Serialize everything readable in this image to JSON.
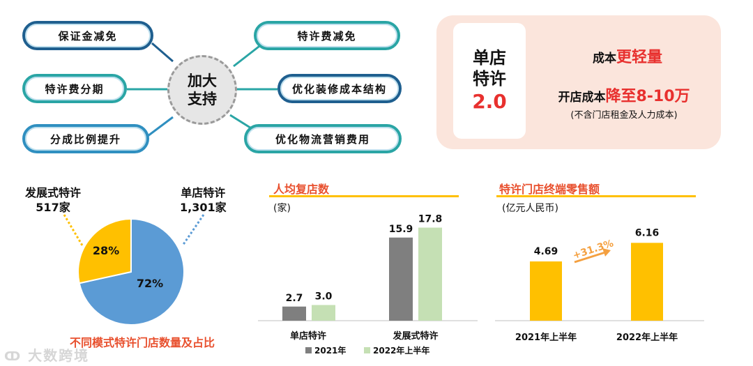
{
  "support": {
    "hub": [
      "加大",
      "支持"
    ],
    "left": [
      "保证金减免",
      "特许费分期",
      "分成比例提升"
    ],
    "right": [
      "特许费减免",
      "优化装修成本结构",
      "优化物流营销费用"
    ]
  },
  "model": {
    "card": [
      "单店",
      "特许",
      "2.0"
    ],
    "line1_prefix": "成本",
    "line1_highlight": "更轻量",
    "line2_prefix": "开店成本",
    "line2_highlight": "降至8-10万",
    "note": "(不含门店租金及人力成本)"
  },
  "colors": {
    "accent": "#e8302e",
    "gray": "#7f7f7f",
    "green": "#c5e0b4",
    "yellow": "#ffc000",
    "blue": "#5b9bd5"
  },
  "chart_data": [
    {
      "type": "pie",
      "title": "不同模式特许门店数量及占比",
      "slices": [
        {
          "label": "单店特许",
          "count_label": "1,301家",
          "value": 1301,
          "percent_label": "72%"
        },
        {
          "label": "发展式特许",
          "count_label": "517家",
          "value": 517,
          "percent_label": "28%"
        }
      ]
    },
    {
      "type": "bar",
      "title": "人均复店数",
      "unit": "(家)",
      "categories": [
        "单店特许",
        "发展式特许"
      ],
      "series": [
        {
          "name": "2021年",
          "values": [
            2.7,
            15.9
          ]
        },
        {
          "name": "2022年上半年",
          "values": [
            3.0,
            17.8
          ]
        }
      ],
      "ylim": [
        0,
        20
      ]
    },
    {
      "type": "bar",
      "title": "特许门店终端零售额",
      "unit": "(亿元人民币)",
      "categories": [
        "2021年上半年",
        "2022年上半年"
      ],
      "values": [
        4.69,
        6.16
      ],
      "growth": "+31.3%",
      "ylim": [
        0,
        8
      ]
    }
  ],
  "watermark": "大数跨境"
}
